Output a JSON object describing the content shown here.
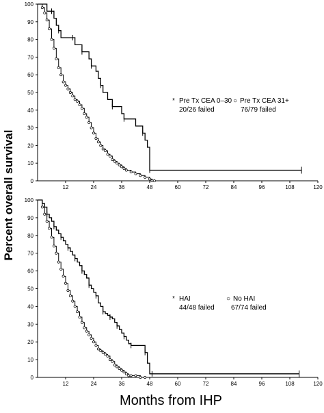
{
  "ylabel": "Percent overall survival",
  "xlabel": "Months from IHP",
  "chart_data": [
    {
      "type": "line",
      "xlim": [
        0,
        120
      ],
      "ylim": [
        0,
        100
      ],
      "xticks": [
        12,
        24,
        36,
        48,
        60,
        72,
        84,
        96,
        108,
        120
      ],
      "yticks": [
        0,
        10,
        20,
        30,
        40,
        50,
        60,
        70,
        80,
        90,
        100
      ],
      "legend": [
        {
          "marker": "*",
          "title": "Pre Tx CEA 0–30",
          "failed": "20/26 failed"
        },
        {
          "marker": "○",
          "title": "Pre Tx CEA 31+",
          "failed": "76/79 failed"
        }
      ],
      "series": [
        {
          "x": [
            0,
            3,
            4,
            6,
            7,
            8,
            9,
            10,
            12,
            15,
            16,
            18,
            19,
            21,
            22,
            23,
            25,
            26,
            27,
            28,
            30,
            32,
            34,
            36,
            37,
            42,
            44,
            45,
            46,
            47,
            48,
            113
          ],
          "y": [
            100,
            100,
            96,
            96,
            92,
            88,
            85,
            81,
            81,
            81,
            77,
            77,
            73,
            73,
            69,
            65,
            62,
            58,
            54,
            50,
            46,
            42,
            42,
            38,
            35,
            31,
            31,
            27,
            23,
            19,
            6,
            6
          ]
        },
        {
          "x": [
            0,
            2,
            3,
            4,
            5,
            6,
            7,
            8,
            9,
            10,
            11,
            12,
            13,
            14,
            15,
            16,
            17,
            18,
            19,
            20,
            21,
            22,
            23,
            24,
            25,
            26,
            27,
            28,
            29,
            30,
            31,
            32,
            33,
            34,
            35,
            36,
            37,
            38,
            40,
            42,
            44,
            46,
            48,
            49,
            50
          ],
          "y": [
            100,
            98,
            95,
            91,
            86,
            80,
            75,
            69,
            64,
            60,
            56,
            54,
            52,
            50,
            48,
            46,
            45,
            43,
            41,
            38,
            36,
            33,
            30,
            27,
            24,
            22,
            20,
            18,
            17,
            15,
            14,
            12,
            11,
            10,
            9,
            8,
            7,
            6,
            5,
            4,
            3,
            2,
            1,
            0,
            0
          ]
        }
      ]
    },
    {
      "type": "line",
      "xlim": [
        0,
        120
      ],
      "ylim": [
        0,
        100
      ],
      "xticks": [
        12,
        24,
        36,
        48,
        60,
        72,
        84,
        96,
        108,
        120
      ],
      "yticks": [
        0,
        10,
        20,
        30,
        40,
        50,
        60,
        70,
        80,
        90,
        100
      ],
      "legend": [
        {
          "marker": "*",
          "title": "HAI",
          "failed": "44/48 failed"
        },
        {
          "marker": "○",
          "title": "No HAI",
          "failed": "67/74 failed"
        }
      ],
      "series": [
        {
          "x": [
            0,
            2,
            3,
            4,
            5,
            6,
            7,
            8,
            9,
            10,
            11,
            12,
            13,
            14,
            15,
            16,
            17,
            18,
            19,
            20,
            21,
            22,
            23,
            24,
            25,
            26,
            27,
            28,
            29,
            30,
            31,
            32,
            33,
            34,
            35,
            36,
            37,
            38,
            39,
            40,
            42,
            44,
            46,
            47,
            48,
            49,
            112
          ],
          "y": [
            100,
            98,
            96,
            92,
            90,
            88,
            85,
            83,
            81,
            79,
            77,
            75,
            73,
            71,
            69,
            67,
            65,
            63,
            60,
            58,
            56,
            52,
            50,
            48,
            46,
            42,
            40,
            37,
            36,
            35,
            34,
            33,
            31,
            29,
            27,
            25,
            23,
            21,
            19,
            18,
            18,
            18,
            14,
            8,
            2,
            2,
            2
          ]
        },
        {
          "x": [
            0,
            2,
            3,
            4,
            5,
            6,
            7,
            8,
            9,
            10,
            11,
            12,
            13,
            14,
            15,
            16,
            17,
            18,
            19,
            20,
            21,
            22,
            23,
            24,
            25,
            26,
            27,
            28,
            29,
            30,
            31,
            32,
            33,
            34,
            35,
            36,
            37,
            38,
            39,
            40,
            42,
            44,
            46
          ],
          "y": [
            100,
            96,
            92,
            88,
            84,
            79,
            74,
            70,
            65,
            61,
            57,
            53,
            49,
            46,
            43,
            40,
            37,
            34,
            31,
            28,
            26,
            24,
            22,
            20,
            18,
            16,
            15,
            14,
            13,
            12,
            10,
            9,
            7,
            6,
            5,
            4,
            3,
            2,
            1,
            1,
            1,
            0,
            0
          ]
        }
      ]
    }
  ]
}
